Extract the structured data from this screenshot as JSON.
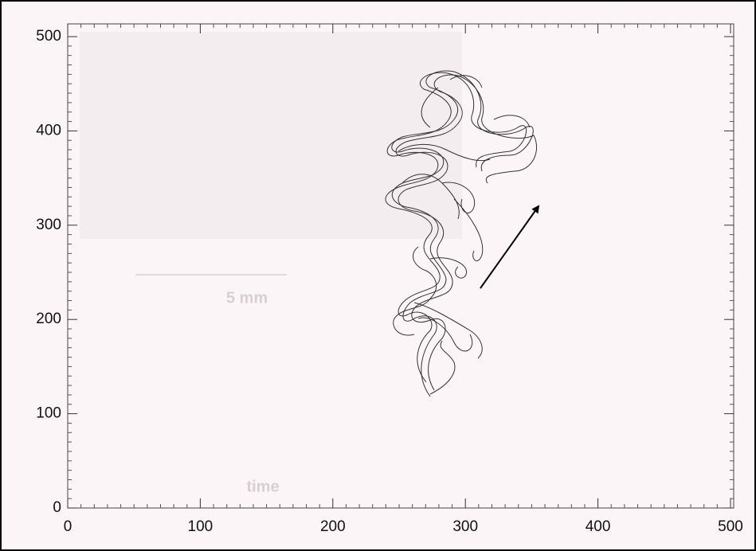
{
  "chart_data": {
    "type": "contour",
    "xlim": [
      0,
      500
    ],
    "ylim": [
      0,
      500
    ],
    "xticks": [
      0,
      100,
      200,
      300,
      400,
      500
    ],
    "yticks": [
      0,
      100,
      200,
      300,
      400,
      500
    ],
    "annotations": [
      "5 mm",
      "time"
    ]
  }
}
